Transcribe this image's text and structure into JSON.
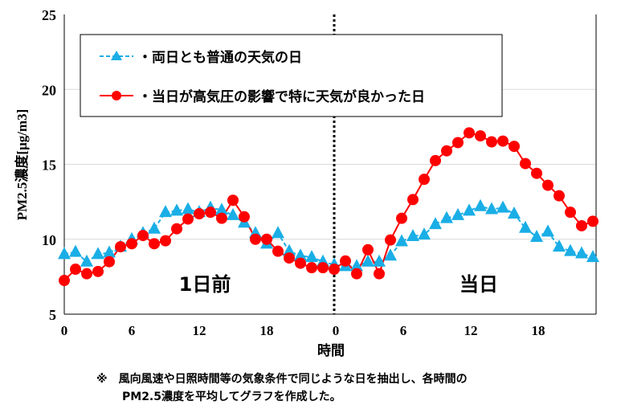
{
  "chart_data": {
    "type": "line",
    "ylabel": "PM2.5濃度[μg/m3]",
    "xlabel": "時間",
    "ylim": [
      5,
      25
    ],
    "yticks": [
      "5",
      "10",
      "15",
      "20",
      "25"
    ],
    "xticks": [
      "0",
      "6",
      "12",
      "18",
      "0",
      "6",
      "12",
      "18"
    ],
    "grid": "horizontal",
    "legend_placement": "top-left",
    "period_labels": [
      "1日前",
      "当日"
    ],
    "x": [
      "0",
      "1",
      "2",
      "3",
      "4",
      "5",
      "6",
      "7",
      "8",
      "9",
      "10",
      "11",
      "12",
      "13",
      "14",
      "15",
      "16",
      "17",
      "18",
      "19",
      "20",
      "21",
      "22",
      "23",
      "0",
      "1",
      "2",
      "3",
      "4",
      "5",
      "6",
      "7",
      "8",
      "9",
      "10",
      "11",
      "12",
      "13",
      "14",
      "15",
      "16",
      "17",
      "18",
      "19",
      "20",
      "21",
      "22",
      "23"
    ],
    "series": [
      {
        "name": "・両日とも普通の天気の日",
        "color": "#1aaee6",
        "marker": "triangle",
        "values": [
          9.0,
          9.15,
          8.5,
          9.0,
          9.1,
          9.5,
          10.0,
          10.4,
          10.7,
          11.8,
          11.9,
          12.0,
          11.8,
          12.1,
          11.95,
          11.6,
          11.1,
          10.4,
          9.7,
          10.4,
          9.2,
          8.9,
          8.8,
          8.5,
          8.3,
          8.2,
          8.2,
          8.5,
          8.5,
          8.9,
          9.85,
          10.2,
          10.3,
          11.0,
          11.4,
          11.6,
          11.9,
          12.2,
          12.0,
          12.1,
          11.7,
          10.75,
          10.15,
          10.5,
          9.5,
          9.2,
          9.05,
          8.8
        ]
      },
      {
        "name": "・当日が高気圧の影響で特に天気が良かった日",
        "color": "#ff0000",
        "marker": "circle",
        "values": [
          7.25,
          8.0,
          7.7,
          7.85,
          8.5,
          9.5,
          9.7,
          10.25,
          9.7,
          9.9,
          10.7,
          11.35,
          11.7,
          11.8,
          11.4,
          12.6,
          11.5,
          10.0,
          10.0,
          9.2,
          8.75,
          8.4,
          8.1,
          8.1,
          8.0,
          8.55,
          7.7,
          9.3,
          7.7,
          9.95,
          11.4,
          12.65,
          14.0,
          15.25,
          15.9,
          16.45,
          17.1,
          16.9,
          16.5,
          16.55,
          16.2,
          15.05,
          14.4,
          13.6,
          12.9,
          11.8,
          10.9,
          11.2
        ]
      }
    ],
    "footnote": [
      "※　風向風速や日照時間等の気象条件で同じような日を抽出し、各時間の",
      "PM2.5濃度を平均してグラフを作成した。"
    ]
  }
}
